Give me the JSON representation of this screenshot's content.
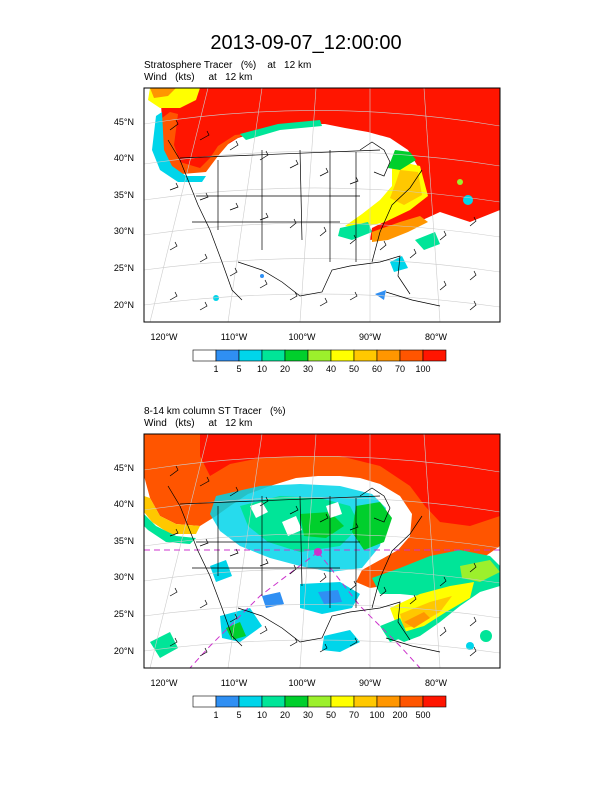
{
  "page_title": "2013-09-07_12:00:00",
  "panels": [
    {
      "title_line1": "Stratosphere Tracer   (%)    at   12 km",
      "title_line2": "Wind   (kts)     at   12 km",
      "lat_labels": [
        "45°N",
        "40°N",
        "35°N",
        "30°N",
        "25°N",
        "20°N"
      ],
      "lon_labels": [
        "120°W",
        "110°W",
        "100°W",
        "90°W",
        "80°W"
      ],
      "colorbar_labels": [
        "1",
        "5",
        "10",
        "20",
        "30",
        "40",
        "50",
        "60",
        "70",
        "100"
      ],
      "colorbar_colors": [
        "#ffffff",
        "#2f8ff3",
        "#00d5ea",
        "#00e598",
        "#00cf2c",
        "#9cf02c",
        "#ffff00",
        "#ffc800",
        "#ff9600",
        "#ff5500",
        "#ff1500"
      ]
    },
    {
      "title_line1": "8-14 km column ST Tracer   (%)",
      "title_line2": "Wind   (kts)     at   12 km",
      "lat_labels": [
        "45°N",
        "40°N",
        "35°N",
        "30°N",
        "25°N",
        "20°N"
      ],
      "lon_labels": [
        "120°W",
        "110°W",
        "100°W",
        "90°W",
        "80°W"
      ],
      "colorbar_labels": [
        "1",
        "5",
        "10",
        "20",
        "30",
        "50",
        "70",
        "100",
        "200",
        "500"
      ],
      "colorbar_colors": [
        "#ffffff",
        "#2f8ff3",
        "#00d5ea",
        "#00e598",
        "#00cf2c",
        "#9cf02c",
        "#ffff00",
        "#ffc800",
        "#ff9600",
        "#ff5500",
        "#ff1500"
      ]
    }
  ]
}
